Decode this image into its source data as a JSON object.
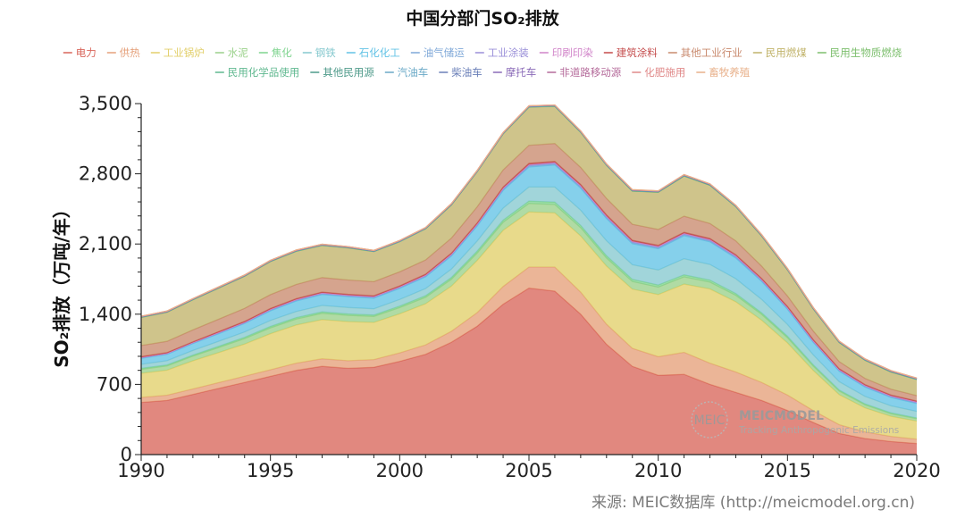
{
  "chart_data": {
    "type": "area",
    "stacked": true,
    "title": "中国分部门SO₂排放",
    "ylabel": "SO₂排放（万吨/年）",
    "xlabel": "",
    "xlim": [
      1990,
      2020
    ],
    "ylim": [
      0,
      3500
    ],
    "x_ticks": [
      "1990",
      "1995",
      "2000",
      "2005",
      "2010",
      "2015",
      "2020"
    ],
    "y_ticks": [
      "0",
      "700",
      "1,400",
      "2,100",
      "2,800",
      "3,500"
    ],
    "x": [
      1990,
      1991,
      1992,
      1993,
      1994,
      1995,
      1996,
      1997,
      1998,
      1999,
      2000,
      2001,
      2002,
      2003,
      2004,
      2005,
      2006,
      2007,
      2008,
      2009,
      2010,
      2011,
      2012,
      2013,
      2014,
      2015,
      2016,
      2017,
      2018,
      2019,
      2020
    ],
    "series": [
      {
        "name": "电力",
        "color": "#d9665b",
        "values": [
          520,
          540,
          600,
          660,
          720,
          780,
          840,
          880,
          860,
          870,
          930,
          1000,
          1120,
          1280,
          1500,
          1660,
          1630,
          1400,
          1100,
          880,
          790,
          800,
          700,
          620,
          540,
          440,
          320,
          210,
          160,
          130,
          110
        ]
      },
      {
        "name": "供热",
        "color": "#e5a07a",
        "values": [
          50,
          52,
          55,
          58,
          62,
          66,
          72,
          76,
          76,
          78,
          84,
          94,
          110,
          136,
          176,
          210,
          240,
          220,
          200,
          180,
          186,
          220,
          212,
          204,
          180,
          154,
          118,
          88,
          66,
          52,
          44
        ]
      },
      {
        "name": "工业锅炉",
        "color": "#e2cf6a",
        "values": [
          240,
          250,
          280,
          300,
          320,
          360,
          380,
          390,
          390,
          370,
          390,
          410,
          450,
          520,
          560,
          550,
          540,
          560,
          580,
          590,
          620,
          680,
          740,
          700,
          620,
          520,
          400,
          300,
          240,
          200,
          180
        ]
      },
      {
        "name": "水泥",
        "color": "#9ad18a",
        "values": [
          40,
          42,
          46,
          50,
          54,
          58,
          60,
          62,
          62,
          60,
          62,
          64,
          68,
          74,
          80,
          84,
          84,
          82,
          80,
          76,
          74,
          72,
          68,
          64,
          58,
          52,
          44,
          36,
          30,
          26,
          24
        ]
      },
      {
        "name": "焦化",
        "color": "#7fd48f",
        "values": [
          10,
          10,
          11,
          12,
          13,
          14,
          14,
          15,
          15,
          14,
          15,
          16,
          18,
          20,
          22,
          24,
          24,
          23,
          22,
          21,
          21,
          21,
          20,
          18,
          16,
          14,
          12,
          10,
          9,
          8,
          7
        ]
      },
      {
        "name": "钢铁",
        "color": "#86c9cf",
        "values": [
          40,
          42,
          46,
          50,
          54,
          60,
          62,
          64,
          64,
          62,
          66,
          72,
          84,
          100,
          120,
          140,
          150,
          152,
          150,
          146,
          150,
          160,
          156,
          148,
          134,
          118,
          100,
          84,
          76,
          70,
          66
        ]
      },
      {
        "name": "石化化工",
        "color": "#63c3e6",
        "values": [
          60,
          64,
          70,
          76,
          84,
          96,
          104,
          110,
          108,
          106,
          110,
          116,
          130,
          150,
          176,
          200,
          220,
          220,
          222,
          210,
          212,
          230,
          226,
          206,
          180,
          152,
          124,
          104,
          92,
          84,
          78
        ]
      },
      {
        "name": "油气储运",
        "color": "#7fa8d8",
        "values": [
          5,
          5,
          5,
          6,
          6,
          7,
          7,
          7,
          7,
          7,
          8,
          8,
          9,
          10,
          11,
          12,
          12,
          12,
          12,
          11,
          11,
          11,
          10,
          10,
          9,
          8,
          8,
          7,
          7,
          7,
          7
        ]
      },
      {
        "name": "工业涂装",
        "color": "#9a8fd8",
        "values": [
          3,
          3,
          3,
          4,
          4,
          4,
          4,
          5,
          5,
          5,
          5,
          5,
          6,
          6,
          7,
          7,
          7,
          7,
          7,
          7,
          7,
          7,
          7,
          7,
          6,
          6,
          6,
          5,
          5,
          5,
          5
        ]
      },
      {
        "name": "印刷印染",
        "color": "#d184c9",
        "values": [
          3,
          3,
          3,
          3,
          4,
          4,
          4,
          4,
          4,
          4,
          4,
          5,
          5,
          5,
          6,
          6,
          6,
          6,
          6,
          6,
          6,
          6,
          6,
          6,
          5,
          5,
          5,
          5,
          5,
          5,
          5
        ]
      },
      {
        "name": "建筑涂料",
        "color": "#c44b4b",
        "values": [
          6,
          6,
          6,
          7,
          7,
          8,
          8,
          8,
          8,
          8,
          8,
          9,
          9,
          10,
          10,
          11,
          11,
          11,
          11,
          10,
          10,
          10,
          10,
          10,
          9,
          9,
          8,
          8,
          8,
          8,
          8
        ]
      },
      {
        "name": "其他工业行业",
        "color": "#c98a6e",
        "values": [
          110,
          112,
          118,
          124,
          130,
          138,
          142,
          144,
          142,
          140,
          140,
          142,
          150,
          160,
          170,
          180,
          178,
          170,
          164,
          160,
          158,
          160,
          150,
          138,
          122,
          104,
          86,
          70,
          62,
          58,
          54
        ]
      },
      {
        "name": "民用燃煤",
        "color": "#c1b36a",
        "values": [
          280,
          290,
          300,
          310,
          320,
          330,
          330,
          320,
          320,
          300,
          300,
          310,
          330,
          350,
          360,
          380,
          370,
          350,
          330,
          330,
          370,
          400,
          380,
          340,
          300,
          260,
          220,
          190,
          180,
          170,
          160
        ]
      },
      {
        "name": "民用生物质燃烧",
        "color": "#7dbf6e",
        "values": [
          2,
          2,
          2,
          2,
          2,
          2,
          2,
          2,
          2,
          2,
          2,
          2,
          2,
          2,
          2,
          2,
          2,
          2,
          2,
          2,
          2,
          2,
          2,
          2,
          2,
          2,
          2,
          2,
          2,
          2,
          2
        ]
      },
      {
        "name": "民用化学品使用",
        "color": "#5fb88f",
        "values": [
          1,
          1,
          1,
          1,
          1,
          1,
          1,
          1,
          1,
          1,
          1,
          1,
          1,
          1,
          1,
          1,
          1,
          1,
          1,
          1,
          1,
          1,
          1,
          1,
          1,
          1,
          1,
          1,
          1,
          1,
          1
        ]
      },
      {
        "name": "其他民用源",
        "color": "#4e9a8a",
        "values": [
          2,
          2,
          2,
          2,
          2,
          2,
          2,
          2,
          2,
          2,
          2,
          2,
          2,
          2,
          2,
          2,
          2,
          2,
          2,
          2,
          2,
          2,
          2,
          2,
          2,
          2,
          2,
          2,
          2,
          2,
          2
        ]
      },
      {
        "name": "汽油车",
        "color": "#6aa9c7",
        "values": [
          1,
          1,
          1,
          1,
          1,
          1,
          1,
          1,
          1,
          1,
          1,
          1,
          1,
          1,
          1,
          2,
          2,
          2,
          2,
          2,
          2,
          2,
          2,
          2,
          2,
          2,
          2,
          2,
          2,
          2,
          2
        ]
      },
      {
        "name": "柴油车",
        "color": "#6a7fb8",
        "values": [
          2,
          2,
          2,
          2,
          2,
          2,
          2,
          2,
          2,
          2,
          3,
          3,
          3,
          3,
          3,
          3,
          3,
          3,
          3,
          3,
          3,
          3,
          3,
          3,
          3,
          3,
          3,
          3,
          3,
          3,
          3
        ]
      },
      {
        "name": "摩托车",
        "color": "#8a6ab8",
        "values": [
          1,
          1,
          1,
          1,
          1,
          1,
          1,
          1,
          1,
          1,
          1,
          1,
          1,
          1,
          1,
          1,
          1,
          1,
          1,
          1,
          1,
          1,
          1,
          1,
          1,
          1,
          1,
          1,
          1,
          1,
          1
        ]
      },
      {
        "name": "非道路移动源",
        "color": "#b46a9a",
        "values": [
          2,
          2,
          2,
          2,
          2,
          2,
          2,
          2,
          2,
          2,
          2,
          2,
          2,
          2,
          2,
          2,
          2,
          2,
          2,
          2,
          2,
          2,
          2,
          2,
          2,
          2,
          2,
          2,
          2,
          2,
          2
        ]
      },
      {
        "name": "化肥施用",
        "color": "#e08a8a",
        "values": [
          1,
          1,
          1,
          1,
          1,
          1,
          1,
          1,
          1,
          1,
          1,
          1,
          1,
          1,
          1,
          1,
          1,
          1,
          1,
          1,
          1,
          1,
          1,
          1,
          1,
          1,
          1,
          1,
          1,
          1,
          1
        ]
      },
      {
        "name": "畜牧养殖",
        "color": "#e8b08a",
        "values": [
          1,
          1,
          1,
          1,
          1,
          1,
          1,
          1,
          1,
          1,
          1,
          1,
          1,
          1,
          1,
          1,
          1,
          1,
          1,
          1,
          1,
          1,
          1,
          1,
          1,
          1,
          1,
          1,
          1,
          1,
          1
        ]
      }
    ]
  },
  "watermark": {
    "logo_text": "MEIC",
    "name": "MEICMODEL",
    "tagline": "Tracking Anthropogenic Emissions"
  },
  "source_text": "来源: MEIC数据库 (http://meicmodel.org.cn)"
}
